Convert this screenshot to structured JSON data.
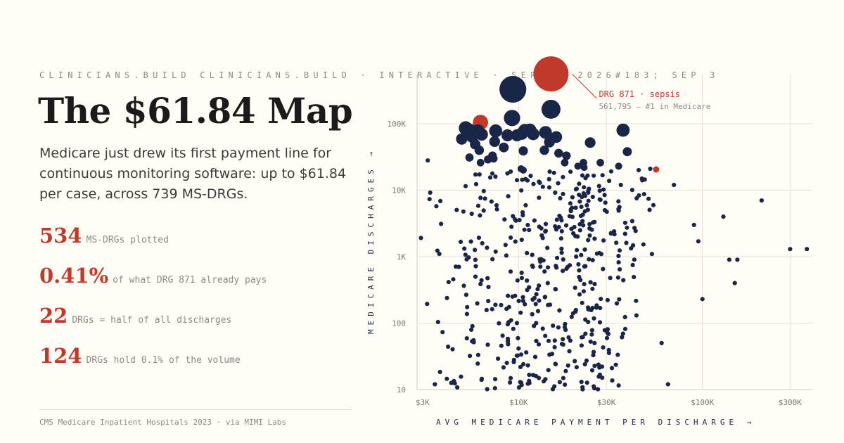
{
  "header": {
    "kicker": "CLINICIANS.BUILD CLINICIANS.BUILD · INTERACTIVE · SEP 3, 2026#183; SEP 3",
    "title": "The $61.84 Map",
    "description": "Medicare just drew its first payment line for continuous monitoring software: up to $61.84 per case, across 739 MS-DRGs."
  },
  "stats": [
    {
      "value": "534",
      "label": "MS-DRGs plotted"
    },
    {
      "value": "0.41%",
      "label": "of what DRG 871 already pays"
    },
    {
      "value": "22",
      "label": "DRGs = half of all discharges"
    },
    {
      "value": "124",
      "label": "DRGs hold 0.1% of the volume"
    }
  ],
  "source": "CMS Medicare Inpatient Hospitals 2023 · via MIMI Labs",
  "colors": {
    "background": "#fffdf6",
    "dot": "#1a2647",
    "highlight": "#c0392b",
    "grid": "#e4e1d6"
  },
  "chart_data": {
    "type": "scatter",
    "xlabel": "AVG MEDICARE PAYMENT PER DISCHARGE →",
    "ylabel": "MEDICARE DISCHARGES →",
    "x_scale": "log",
    "y_scale": "log",
    "xlim": [
      2800,
      400000
    ],
    "ylim": [
      10,
      550000
    ],
    "x_ticks": [
      {
        "value": 3000,
        "label": "$3K"
      },
      {
        "value": 10000,
        "label": "$10K"
      },
      {
        "value": 30000,
        "label": "$30K"
      },
      {
        "value": 100000,
        "label": "$100K"
      },
      {
        "value": 300000,
        "label": "$300K"
      }
    ],
    "y_ticks": [
      {
        "value": 10,
        "label": "10"
      },
      {
        "value": 100,
        "label": "100"
      },
      {
        "value": 1000,
        "label": "1K"
      },
      {
        "value": 10000,
        "label": "10K"
      },
      {
        "value": 100000,
        "label": "100K"
      }
    ],
    "annotation": {
      "title": "DRG 871 · sepsis",
      "subtitle": "561,795 — #1 in Medicare",
      "x": 15000,
      "y": 561795
    },
    "points": [
      {
        "x": 15000,
        "y": 561795,
        "h": 1
      },
      {
        "x": 9300,
        "y": 330000
      },
      {
        "x": 15000,
        "y": 165000
      },
      {
        "x": 9200,
        "y": 122000
      },
      {
        "x": 6200,
        "y": 105000,
        "h": 1
      },
      {
        "x": 5150,
        "y": 86000
      },
      {
        "x": 5400,
        "y": 80000
      },
      {
        "x": 6000,
        "y": 78000
      },
      {
        "x": 7500,
        "y": 78000
      },
      {
        "x": 10800,
        "y": 79000
      },
      {
        "x": 11500,
        "y": 80000
      },
      {
        "x": 14000,
        "y": 74000
      },
      {
        "x": 37000,
        "y": 80000
      },
      {
        "x": 9800,
        "y": 67000
      },
      {
        "x": 12000,
        "y": 70000
      },
      {
        "x": 16000,
        "y": 63000
      },
      {
        "x": 4900,
        "y": 59000
      },
      {
        "x": 5600,
        "y": 63000
      },
      {
        "x": 6300,
        "y": 69000
      },
      {
        "x": 8700,
        "y": 67000
      },
      {
        "x": 10400,
        "y": 71000
      },
      {
        "x": 7400,
        "y": 54000
      },
      {
        "x": 8300,
        "y": 44000
      },
      {
        "x": 5800,
        "y": 49000
      },
      {
        "x": 6100,
        "y": 40000
      },
      {
        "x": 10600,
        "y": 39000
      },
      {
        "x": 13800,
        "y": 40000
      },
      {
        "x": 14700,
        "y": 53000
      },
      {
        "x": 24500,
        "y": 52000
      },
      {
        "x": 16500,
        "y": 36000
      },
      {
        "x": 18200,
        "y": 33000
      },
      {
        "x": 39000,
        "y": 38000
      },
      {
        "x": 5400,
        "y": 31000
      },
      {
        "x": 6200,
        "y": 26000
      },
      {
        "x": 7300,
        "y": 30000
      },
      {
        "x": 6800,
        "y": 29000
      },
      {
        "x": 7200,
        "y": 33000
      },
      {
        "x": 21000,
        "y": 23000
      },
      {
        "x": 22500,
        "y": 26000
      },
      {
        "x": 17800,
        "y": 26000
      },
      {
        "x": 35000,
        "y": 23000
      },
      {
        "x": 10600,
        "y": 20000
      },
      {
        "x": 10300,
        "y": 21000
      },
      {
        "x": 22700,
        "y": 22000
      },
      {
        "x": 27800,
        "y": 26000
      }
    ]
  }
}
